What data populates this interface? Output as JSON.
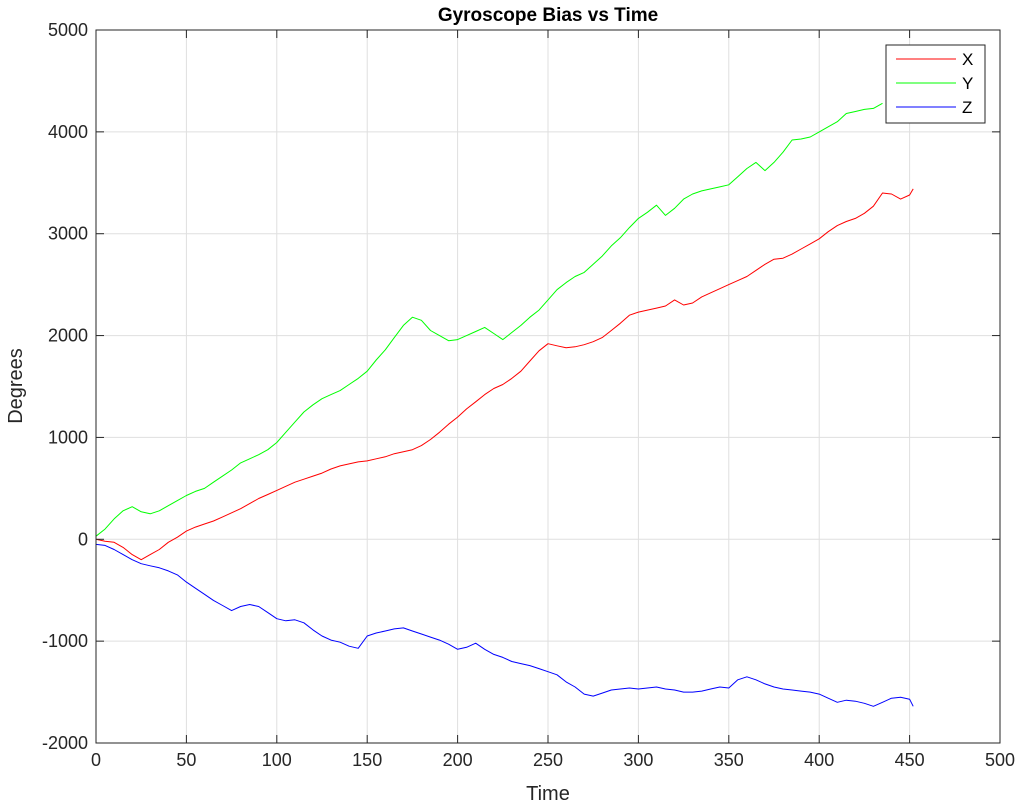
{
  "chart_data": {
    "type": "line",
    "title": "Gyroscope Bias vs Time",
    "xlabel": "Time",
    "ylabel": "Degrees",
    "xlim": [
      0,
      500
    ],
    "ylim": [
      -2000,
      5000
    ],
    "xticks": [
      0,
      50,
      100,
      150,
      200,
      250,
      300,
      350,
      400,
      450,
      500
    ],
    "yticks": [
      -2000,
      -1000,
      0,
      1000,
      2000,
      3000,
      4000,
      5000
    ],
    "grid": true,
    "legend_position": "top-right",
    "series": [
      {
        "name": "X",
        "color": "#ff0000",
        "points": [
          [
            0,
            0
          ],
          [
            5,
            -20
          ],
          [
            10,
            -30
          ],
          [
            15,
            -80
          ],
          [
            20,
            -150
          ],
          [
            25,
            -200
          ],
          [
            30,
            -150
          ],
          [
            35,
            -100
          ],
          [
            40,
            -30
          ],
          [
            45,
            20
          ],
          [
            50,
            80
          ],
          [
            55,
            120
          ],
          [
            60,
            150
          ],
          [
            65,
            180
          ],
          [
            70,
            220
          ],
          [
            75,
            260
          ],
          [
            80,
            300
          ],
          [
            85,
            350
          ],
          [
            90,
            400
          ],
          [
            95,
            440
          ],
          [
            100,
            480
          ],
          [
            105,
            520
          ],
          [
            110,
            560
          ],
          [
            115,
            590
          ],
          [
            120,
            620
          ],
          [
            125,
            650
          ],
          [
            130,
            690
          ],
          [
            135,
            720
          ],
          [
            140,
            740
          ],
          [
            145,
            760
          ],
          [
            150,
            770
          ],
          [
            155,
            790
          ],
          [
            160,
            810
          ],
          [
            165,
            840
          ],
          [
            170,
            860
          ],
          [
            175,
            880
          ],
          [
            180,
            920
          ],
          [
            185,
            980
          ],
          [
            190,
            1050
          ],
          [
            195,
            1130
          ],
          [
            200,
            1200
          ],
          [
            205,
            1280
          ],
          [
            210,
            1350
          ],
          [
            215,
            1420
          ],
          [
            220,
            1480
          ],
          [
            225,
            1520
          ],
          [
            230,
            1580
          ],
          [
            235,
            1650
          ],
          [
            240,
            1750
          ],
          [
            245,
            1850
          ],
          [
            250,
            1920
          ],
          [
            255,
            1900
          ],
          [
            260,
            1880
          ],
          [
            265,
            1890
          ],
          [
            270,
            1910
          ],
          [
            275,
            1940
          ],
          [
            280,
            1980
          ],
          [
            285,
            2050
          ],
          [
            290,
            2120
          ],
          [
            295,
            2200
          ],
          [
            300,
            2230
          ],
          [
            305,
            2250
          ],
          [
            310,
            2270
          ],
          [
            315,
            2290
          ],
          [
            320,
            2350
          ],
          [
            325,
            2300
          ],
          [
            330,
            2320
          ],
          [
            335,
            2380
          ],
          [
            340,
            2420
          ],
          [
            345,
            2460
          ],
          [
            350,
            2500
          ],
          [
            355,
            2540
          ],
          [
            360,
            2580
          ],
          [
            365,
            2640
          ],
          [
            370,
            2700
          ],
          [
            375,
            2750
          ],
          [
            380,
            2760
          ],
          [
            385,
            2800
          ],
          [
            390,
            2850
          ],
          [
            395,
            2900
          ],
          [
            400,
            2950
          ],
          [
            405,
            3020
          ],
          [
            410,
            3080
          ],
          [
            415,
            3120
          ],
          [
            420,
            3150
          ],
          [
            425,
            3200
          ],
          [
            430,
            3270
          ],
          [
            435,
            3400
          ],
          [
            440,
            3390
          ],
          [
            445,
            3340
          ],
          [
            450,
            3380
          ],
          [
            452,
            3440
          ]
        ]
      },
      {
        "name": "Y",
        "color": "#00ff00",
        "points": [
          [
            0,
            30
          ],
          [
            5,
            100
          ],
          [
            10,
            200
          ],
          [
            15,
            280
          ],
          [
            20,
            320
          ],
          [
            25,
            270
          ],
          [
            30,
            250
          ],
          [
            35,
            280
          ],
          [
            40,
            330
          ],
          [
            45,
            380
          ],
          [
            50,
            430
          ],
          [
            55,
            470
          ],
          [
            60,
            500
          ],
          [
            65,
            560
          ],
          [
            70,
            620
          ],
          [
            75,
            680
          ],
          [
            80,
            750
          ],
          [
            85,
            790
          ],
          [
            90,
            830
          ],
          [
            95,
            880
          ],
          [
            100,
            950
          ],
          [
            105,
            1050
          ],
          [
            110,
            1150
          ],
          [
            115,
            1250
          ],
          [
            120,
            1320
          ],
          [
            125,
            1380
          ],
          [
            130,
            1420
          ],
          [
            135,
            1460
          ],
          [
            140,
            1520
          ],
          [
            145,
            1580
          ],
          [
            150,
            1650
          ],
          [
            155,
            1760
          ],
          [
            160,
            1860
          ],
          [
            165,
            1980
          ],
          [
            170,
            2100
          ],
          [
            175,
            2180
          ],
          [
            180,
            2150
          ],
          [
            185,
            2050
          ],
          [
            190,
            2000
          ],
          [
            195,
            1950
          ],
          [
            200,
            1960
          ],
          [
            205,
            2000
          ],
          [
            210,
            2040
          ],
          [
            215,
            2080
          ],
          [
            220,
            2020
          ],
          [
            225,
            1960
          ],
          [
            230,
            2030
          ],
          [
            235,
            2100
          ],
          [
            240,
            2180
          ],
          [
            245,
            2250
          ],
          [
            250,
            2350
          ],
          [
            255,
            2450
          ],
          [
            260,
            2520
          ],
          [
            265,
            2580
          ],
          [
            270,
            2620
          ],
          [
            275,
            2700
          ],
          [
            280,
            2780
          ],
          [
            285,
            2880
          ],
          [
            290,
            2960
          ],
          [
            295,
            3060
          ],
          [
            300,
            3150
          ],
          [
            305,
            3210
          ],
          [
            310,
            3280
          ],
          [
            315,
            3180
          ],
          [
            320,
            3250
          ],
          [
            325,
            3340
          ],
          [
            330,
            3390
          ],
          [
            335,
            3420
          ],
          [
            340,
            3440
          ],
          [
            345,
            3460
          ],
          [
            350,
            3480
          ],
          [
            355,
            3560
          ],
          [
            360,
            3640
          ],
          [
            365,
            3700
          ],
          [
            370,
            3620
          ],
          [
            375,
            3700
          ],
          [
            380,
            3800
          ],
          [
            385,
            3920
          ],
          [
            390,
            3930
          ],
          [
            395,
            3950
          ],
          [
            400,
            4000
          ],
          [
            405,
            4050
          ],
          [
            410,
            4100
          ],
          [
            415,
            4180
          ],
          [
            420,
            4200
          ],
          [
            425,
            4220
          ],
          [
            430,
            4230
          ],
          [
            435,
            4280
          ]
        ]
      },
      {
        "name": "Z",
        "color": "#0000ff",
        "points": [
          [
            0,
            -50
          ],
          [
            5,
            -60
          ],
          [
            10,
            -100
          ],
          [
            15,
            -150
          ],
          [
            20,
            -200
          ],
          [
            25,
            -240
          ],
          [
            30,
            -260
          ],
          [
            35,
            -280
          ],
          [
            40,
            -310
          ],
          [
            45,
            -350
          ],
          [
            50,
            -420
          ],
          [
            55,
            -480
          ],
          [
            60,
            -540
          ],
          [
            65,
            -600
          ],
          [
            70,
            -650
          ],
          [
            75,
            -700
          ],
          [
            80,
            -660
          ],
          [
            85,
            -640
          ],
          [
            90,
            -660
          ],
          [
            95,
            -720
          ],
          [
            100,
            -780
          ],
          [
            105,
            -800
          ],
          [
            110,
            -790
          ],
          [
            115,
            -820
          ],
          [
            120,
            -890
          ],
          [
            125,
            -950
          ],
          [
            130,
            -990
          ],
          [
            135,
            -1010
          ],
          [
            140,
            -1050
          ],
          [
            145,
            -1070
          ],
          [
            150,
            -950
          ],
          [
            155,
            -920
          ],
          [
            160,
            -900
          ],
          [
            165,
            -880
          ],
          [
            170,
            -870
          ],
          [
            175,
            -900
          ],
          [
            180,
            -930
          ],
          [
            185,
            -960
          ],
          [
            190,
            -990
          ],
          [
            195,
            -1030
          ],
          [
            200,
            -1080
          ],
          [
            205,
            -1060
          ],
          [
            210,
            -1020
          ],
          [
            215,
            -1080
          ],
          [
            220,
            -1130
          ],
          [
            225,
            -1160
          ],
          [
            230,
            -1200
          ],
          [
            235,
            -1220
          ],
          [
            240,
            -1240
          ],
          [
            245,
            -1270
          ],
          [
            250,
            -1300
          ],
          [
            255,
            -1330
          ],
          [
            260,
            -1400
          ],
          [
            265,
            -1450
          ],
          [
            270,
            -1520
          ],
          [
            275,
            -1540
          ],
          [
            280,
            -1510
          ],
          [
            285,
            -1480
          ],
          [
            290,
            -1470
          ],
          [
            295,
            -1460
          ],
          [
            300,
            -1470
          ],
          [
            305,
            -1460
          ],
          [
            310,
            -1450
          ],
          [
            315,
            -1470
          ],
          [
            320,
            -1480
          ],
          [
            325,
            -1500
          ],
          [
            330,
            -1500
          ],
          [
            335,
            -1490
          ],
          [
            340,
            -1470
          ],
          [
            345,
            -1450
          ],
          [
            350,
            -1460
          ],
          [
            355,
            -1380
          ],
          [
            360,
            -1350
          ],
          [
            365,
            -1380
          ],
          [
            370,
            -1420
          ],
          [
            375,
            -1450
          ],
          [
            380,
            -1470
          ],
          [
            385,
            -1480
          ],
          [
            390,
            -1490
          ],
          [
            395,
            -1500
          ],
          [
            400,
            -1520
          ],
          [
            405,
            -1560
          ],
          [
            410,
            -1600
          ],
          [
            415,
            -1580
          ],
          [
            420,
            -1590
          ],
          [
            425,
            -1610
          ],
          [
            430,
            -1640
          ],
          [
            435,
            -1600
          ],
          [
            440,
            -1560
          ],
          [
            445,
            -1550
          ],
          [
            450,
            -1570
          ],
          [
            452,
            -1640
          ]
        ]
      }
    ]
  }
}
